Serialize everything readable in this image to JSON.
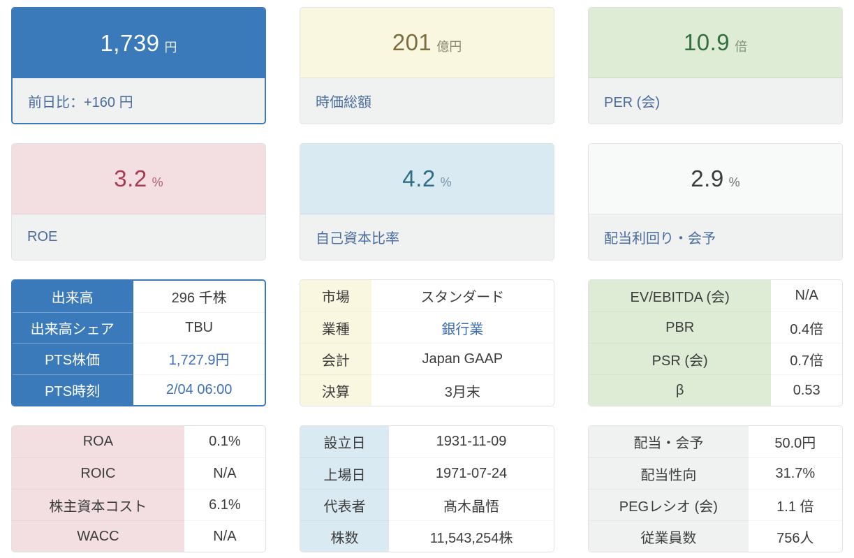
{
  "colors": {
    "accent_blue": "#3a79ba",
    "cream": "#faf7e0",
    "green": "#deecd6",
    "pink": "#f3dee1",
    "light_blue": "#d9eaf3",
    "footer_gray": "#f0f1f1",
    "link_blue": "#3e6fb4",
    "label_blue": "#4a6d9e",
    "value_green": "#336f3c",
    "value_crimson": "#a73b52",
    "value_teal": "#2e6e87",
    "value_olive": "#7c6c3e"
  },
  "stat_cards": [
    {
      "value": "1,739",
      "unit": "円",
      "label": "前日比：+160 円"
    },
    {
      "value": "201",
      "unit": "億円",
      "label": "時価総額"
    },
    {
      "value": "10.9",
      "unit": "倍",
      "label": "PER (会)"
    },
    {
      "value": "3.2",
      "unit": "%",
      "label": "ROE"
    },
    {
      "value": "4.2",
      "unit": "%",
      "label": "自己資本比率"
    },
    {
      "value": "2.9",
      "unit": "%",
      "label": "配当利回り・会予"
    }
  ],
  "tables": [
    {
      "name": "trading",
      "rows": [
        {
          "label": "出来高",
          "value": "296 千株"
        },
        {
          "label": "出来高シェア",
          "value": "TBU"
        },
        {
          "label": "PTS株価",
          "value": "1,727.9円"
        },
        {
          "label": "PTS時刻",
          "value": "2/04 06:00"
        }
      ]
    },
    {
      "name": "market-profile",
      "rows": [
        {
          "label": "市場",
          "value": "スタンダード"
        },
        {
          "label": "業種",
          "value": "銀行業"
        },
        {
          "label": "会計",
          "value": "Japan GAAP"
        },
        {
          "label": "決算",
          "value": "3月末"
        }
      ]
    },
    {
      "name": "valuation",
      "rows": [
        {
          "label": "EV/EBITDA (会)",
          "value": "N/A"
        },
        {
          "label": "PBR",
          "value": "0.4倍"
        },
        {
          "label": "PSR (会)",
          "value": "0.7倍"
        },
        {
          "label": "β",
          "value": "0.53"
        }
      ]
    },
    {
      "name": "profitability",
      "rows": [
        {
          "label": "ROA",
          "value": "0.1%"
        },
        {
          "label": "ROIC",
          "value": "N/A"
        },
        {
          "label": "株主資本コスト",
          "value": "6.1%"
        },
        {
          "label": "WACC",
          "value": "N/A"
        }
      ]
    },
    {
      "name": "company-info",
      "rows": [
        {
          "label": "設立日",
          "value": "1931-11-09"
        },
        {
          "label": "上場日",
          "value": "1971-07-24"
        },
        {
          "label": "代表者",
          "value": "髙木晶悟"
        },
        {
          "label": "株数",
          "value": "11,543,254株"
        }
      ]
    },
    {
      "name": "dividend-info",
      "rows": [
        {
          "label": "配当・会予",
          "value": "50.0円"
        },
        {
          "label": "配当性向",
          "value": "31.7%"
        },
        {
          "label": "PEGレシオ (会)",
          "value": "1.1 倍"
        },
        {
          "label": "従業員数",
          "value": "756人"
        }
      ]
    }
  ]
}
